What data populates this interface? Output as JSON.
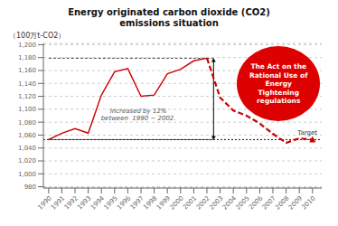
{
  "chart_data": {
    "type": "line",
    "title": "Energy originated carbon dioxide (CO2)\nemissions situation",
    "y_label": "（100万t-CO2）",
    "x": [
      1990,
      1991,
      1992,
      1993,
      1994,
      1995,
      1996,
      1997,
      1998,
      1999,
      2000,
      2001,
      2002,
      2003,
      2004,
      2005,
      2006,
      2007,
      2008,
      2009,
      2010
    ],
    "series": [
      {
        "color": "#cc0000",
        "line_style": "solid",
        "values": [
          1053,
          1063,
          1070,
          1063,
          1122,
          1158,
          1163,
          1120,
          1122,
          1155,
          1162,
          1175,
          1179,
          null,
          null,
          null,
          null,
          null,
          null,
          null,
          null
        ]
      },
      {
        "color": "#cc0000",
        "line_style": "dashed",
        "values": [
          null,
          null,
          null,
          null,
          null,
          null,
          null,
          null,
          null,
          null,
          null,
          null,
          1179,
          1118,
          1098,
          1090,
          1078,
          1062,
          1048,
          1055,
          1053
        ]
      }
    ],
    "target": {
      "value": 1053,
      "label": "Target",
      "color": "#111111"
    },
    "annotations": [
      "Increased by 12%\nbetween  1990 − 2002."
    ],
    "callout": {
      "text": "The Act on the\nRational Use of\nEnergy\nTightening\nregulations",
      "color": "#dd0000",
      "text_color": "#ffffff"
    },
    "xlim": [
      1989.6,
      2010.7
    ],
    "xticks": [
      1990,
      1991,
      1992,
      1993,
      1994,
      1995,
      1996,
      1997,
      1998,
      1999,
      2000,
      2001,
      2002,
      2003,
      2004,
      2005,
      2006,
      2007,
      2008,
      2009,
      2010
    ],
    "ylim": [
      978,
      1202
    ],
    "yticks": [
      980,
      {
        "value": 1000,
        "label": "1,000"
      },
      {
        "value": 1020,
        "label": "1,020"
      },
      {
        "value": 1040,
        "label": "1,040"
      },
      {
        "value": 1060,
        "label": "1,060"
      },
      {
        "value": 1080,
        "label": "1,080"
      },
      {
        "value": 1100,
        "label": "1,100"
      },
      {
        "value": 1120,
        "label": "1,120"
      },
      {
        "value": 1140,
        "label": "1,140"
      },
      {
        "value": 1160,
        "label": "1,160"
      },
      {
        "value": 1180,
        "label": "1,180"
      },
      {
        "value": 1200,
        "label": "1,200"
      }
    ],
    "grid": true
  }
}
